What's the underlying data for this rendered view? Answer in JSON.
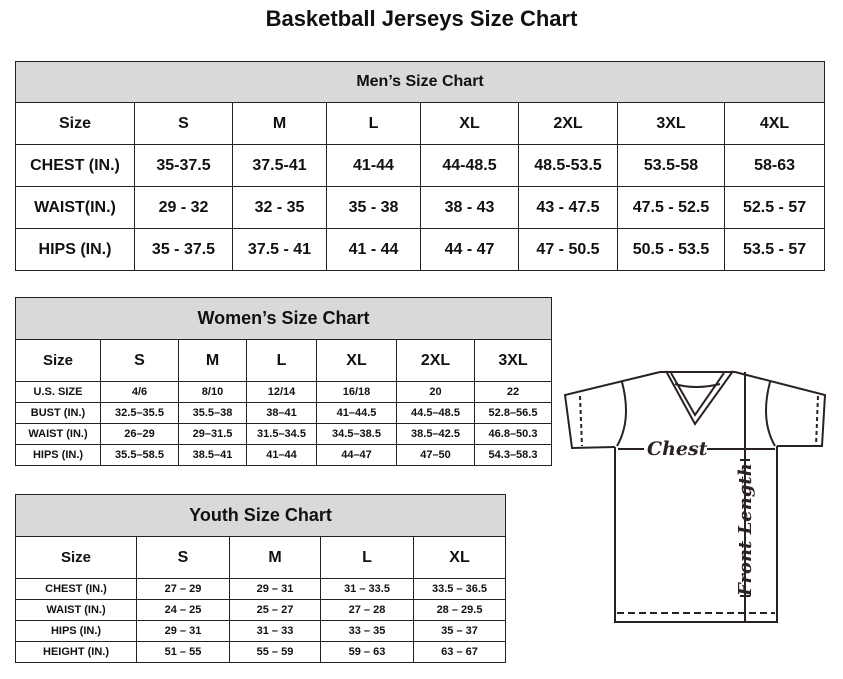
{
  "title": "Basketball Jerseys Size Chart",
  "men": {
    "title": "Men’s Size Chart",
    "header": [
      "Size",
      "S",
      "M",
      "L",
      "XL",
      "2XL",
      "3XL",
      "4XL"
    ],
    "rows": [
      [
        "CHEST (IN.)",
        "35-37.5",
        "37.5-41",
        "41-44",
        "44-48.5",
        "48.5-53.5",
        "53.5-58",
        "58-63"
      ],
      [
        "WAIST(IN.)",
        "29 - 32",
        "32 - 35",
        "35 - 38",
        "38 - 43",
        "43 - 47.5",
        "47.5 - 52.5",
        "52.5 - 57"
      ],
      [
        "HIPS (IN.)",
        "35 - 37.5",
        "37.5 - 41",
        "41 - 44",
        "44 - 47",
        "47 - 50.5",
        "50.5 - 53.5",
        "53.5 - 57"
      ]
    ]
  },
  "women": {
    "title": "Women’s Size Chart",
    "header": [
      "Size",
      "S",
      "M",
      "L",
      "XL",
      "2XL",
      "3XL"
    ],
    "rows": [
      [
        "U.S.  SIZE",
        "4/6",
        "8/10",
        "12/14",
        "16/18",
        "20",
        "22"
      ],
      [
        "BUST  (IN.)",
        "32.5–35.5",
        "35.5–38",
        "38–41",
        "41–44.5",
        "44.5–48.5",
        "52.8–56.5"
      ],
      [
        "WAIST  (IN.)",
        "26–29",
        "29–31.5",
        "31.5–34.5",
        "34.5–38.5",
        "38.5–42.5",
        "46.8–50.3"
      ],
      [
        "HIPS  (IN.)",
        "35.5–58.5",
        "38.5–41",
        "41–44",
        "44–47",
        "47–50",
        "54.3–58.3"
      ]
    ]
  },
  "youth": {
    "title": "Youth Size Chart",
    "header": [
      "Size",
      "S",
      "M",
      "L",
      "XL"
    ],
    "rows": [
      [
        "CHEST  (IN.)",
        "27  –  29",
        "29  –  31",
        "31  –  33.5",
        "33.5  –  36.5"
      ],
      [
        "WAIST  (IN.)",
        "24  –  25",
        "25  –  27",
        "27  –  28",
        "28  –  29.5"
      ],
      [
        "HIPS  (IN.)",
        "29  –  31",
        "31  –  33",
        "33  –  35",
        "35  –  37"
      ],
      [
        "HEIGHT  (IN.)",
        "51  –  55",
        "55  –  59",
        "59  –  63",
        "63  –  67"
      ]
    ]
  },
  "diagram": {
    "chest_label": "Chest",
    "length_label": "Front Length"
  }
}
